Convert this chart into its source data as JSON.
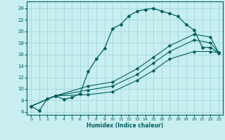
{
  "title": "",
  "xlabel": "Humidex (Indice chaleur)",
  "xlim": [
    -0.5,
    23.5
  ],
  "ylim": [
    5.5,
    25.2
  ],
  "xticks": [
    0,
    1,
    2,
    3,
    4,
    5,
    6,
    7,
    8,
    9,
    10,
    11,
    12,
    13,
    14,
    15,
    16,
    17,
    18,
    19,
    20,
    21,
    22,
    23
  ],
  "yticks": [
    6,
    8,
    10,
    12,
    14,
    16,
    18,
    20,
    22,
    24
  ],
  "bg_color": "#c8eef0",
  "line_color": "#006060",
  "grid_color": "#a0d8dc",
  "curve1_x": [
    0,
    1,
    2,
    3,
    4,
    5,
    6,
    7,
    8,
    9,
    10,
    11,
    12,
    13,
    14,
    15,
    16,
    17,
    18,
    19,
    20,
    21,
    22,
    23
  ],
  "curve1_y": [
    7.0,
    6.2,
    8.3,
    8.8,
    8.2,
    8.5,
    9.2,
    13.0,
    15.2,
    17.0,
    20.5,
    21.2,
    22.7,
    23.5,
    23.8,
    24.0,
    23.5,
    23.1,
    22.6,
    21.2,
    20.2,
    17.2,
    17.2,
    16.2
  ],
  "curve2_x": [
    0,
    3,
    7,
    10,
    13,
    15,
    17,
    20,
    22,
    23
  ],
  "curve2_y": [
    7.0,
    8.8,
    10.5,
    11.2,
    13.5,
    15.5,
    17.5,
    19.5,
    19.0,
    16.3
  ],
  "curve3_x": [
    0,
    3,
    7,
    10,
    13,
    15,
    17,
    20,
    22,
    23
  ],
  "curve3_y": [
    7.0,
    8.8,
    9.8,
    10.5,
    12.5,
    14.5,
    16.5,
    18.5,
    18.0,
    16.3
  ],
  "curve4_x": [
    0,
    3,
    7,
    10,
    13,
    15,
    17,
    20,
    22,
    23
  ],
  "curve4_y": [
    7.0,
    8.8,
    9.0,
    9.5,
    11.5,
    13.2,
    15.2,
    16.5,
    16.5,
    16.3
  ]
}
